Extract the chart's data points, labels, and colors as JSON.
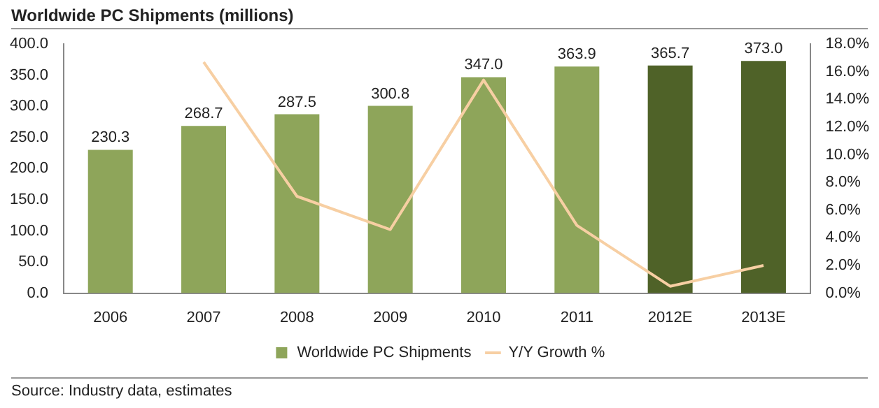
{
  "chart_data": {
    "type": "bar",
    "title": "Worldwide PC Shipments (millions)",
    "categories": [
      "2006",
      "2007",
      "2008",
      "2009",
      "2010",
      "2011",
      "2012E",
      "2013E"
    ],
    "series": [
      {
        "name": "Worldwide PC Shipments",
        "color": "#8ea55a",
        "colors": [
          "#8ea55a",
          "#8ea55a",
          "#8ea55a",
          "#8ea55a",
          "#8ea55a",
          "#8ea55a",
          "#4f6228",
          "#4f6228"
        ],
        "values": [
          230.3,
          268.7,
          287.5,
          300.8,
          347.0,
          363.9,
          365.7,
          373.0
        ],
        "value_labels": [
          "230.3",
          "268.7",
          "287.5",
          "300.8",
          "347.0",
          "363.9",
          "365.7",
          "373.0"
        ]
      },
      {
        "name": "Y/Y Growth %",
        "type": "line",
        "axis": "y2",
        "color": "#f7cfa3",
        "values": [
          null,
          16.7,
          7.0,
          4.6,
          15.4,
          4.9,
          0.5,
          2.0
        ]
      }
    ],
    "ylim": [
      0,
      400
    ],
    "yticks": [
      {
        "value": 0,
        "label": "0.0"
      },
      {
        "value": 50,
        "label": "50.0"
      },
      {
        "value": 100,
        "label": "100.0"
      },
      {
        "value": 150,
        "label": "150.0"
      },
      {
        "value": 200,
        "label": "200.0"
      },
      {
        "value": 250,
        "label": "250.0"
      },
      {
        "value": 300,
        "label": "300.0"
      },
      {
        "value": 350,
        "label": "350.0"
      },
      {
        "value": 400,
        "label": "400.0"
      }
    ],
    "y2lim": [
      0,
      18
    ],
    "y2ticks": [
      {
        "value": 0,
        "label": "0.0%"
      },
      {
        "value": 2,
        "label": "2.0%"
      },
      {
        "value": 4,
        "label": "4.0%"
      },
      {
        "value": 6,
        "label": "6.0%"
      },
      {
        "value": 8,
        "label": "8.0%"
      },
      {
        "value": 10,
        "label": "10.0%"
      },
      {
        "value": 12,
        "label": "12.0%"
      },
      {
        "value": 14,
        "label": "14.0%"
      },
      {
        "value": 16,
        "label": "16.0%"
      },
      {
        "value": 18,
        "label": "18.0%"
      }
    ],
    "grid": false,
    "legend": "bottom",
    "marker": "none",
    "annotations": [
      "Source: Industry data, estimates"
    ]
  }
}
